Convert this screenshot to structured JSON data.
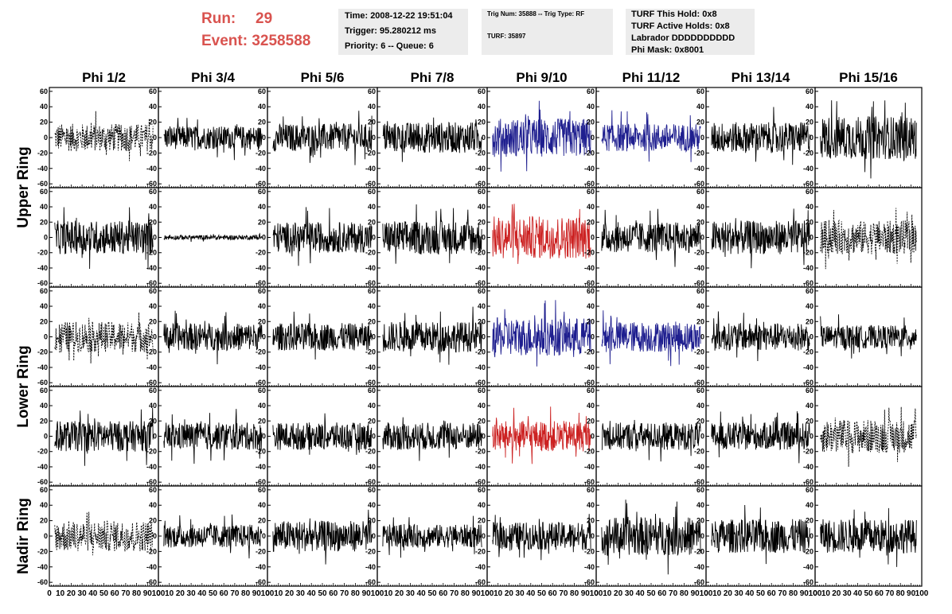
{
  "header": {
    "run_label": "Run:",
    "run_value": "29",
    "event_label": "Event:",
    "event_value": "3258588",
    "info_time": "Time: 2008-12-22 19:51:04",
    "info_trigger": "Trigger: 95.280212 ms",
    "info_priority": "Priority: 6 -- Queue: 6",
    "trig_line": "Trig Num: 35888 -- Trig Type: RF",
    "turf_line": "TURF: 35897",
    "turf_this_hold": "TURF This Hold: 0x8",
    "turf_active_holds": "TURF Active Holds: 0x8",
    "labrador": "Labrador DDDDDDDDDD",
    "phi_mask": "Phi Mask: 0x8001"
  },
  "colors": {
    "normal": "#000000",
    "blue": "#1f1f8f",
    "red": "#cc2222",
    "header_red": "#d9534f",
    "panel_bg": "#ececec"
  },
  "chart_data": {
    "type": "line",
    "columns": [
      "Phi 1/2",
      "Phi 3/4",
      "Phi 5/6",
      "Phi 7/8",
      "Phi 9/10",
      "Phi 11/12",
      "Phi 13/14",
      "Phi 15/16"
    ],
    "ring_labels": [
      "Upper Ring",
      "Lower Ring",
      "Nadir Ring"
    ],
    "y_ticks": [
      "60",
      "40",
      "20",
      "0",
      "-20",
      "-40",
      "-60"
    ],
    "x_ticks": [
      "0",
      "10",
      "20",
      "30",
      "40",
      "50",
      "60",
      "70",
      "80",
      "90",
      "100"
    ],
    "xlim": [
      0,
      100
    ],
    "ylim": [
      -65,
      65
    ],
    "rows": [
      {
        "styles": [
          "dashed",
          "solid",
          "solid",
          "solid",
          "blue",
          "blue",
          "solid",
          "solid"
        ],
        "amplitudes": [
          18,
          15,
          18,
          20,
          25,
          18,
          20,
          28
        ]
      },
      {
        "styles": [
          "solid",
          "solid",
          "solid",
          "solid",
          "red",
          "solid",
          "solid",
          "dashed"
        ],
        "amplitudes": [
          22,
          3,
          20,
          22,
          28,
          20,
          22,
          22
        ]
      },
      {
        "styles": [
          "dashed",
          "solid",
          "solid",
          "solid",
          "blue",
          "blue",
          "solid",
          "solid"
        ],
        "amplitudes": [
          20,
          18,
          18,
          20,
          25,
          20,
          18,
          15
        ]
      },
      {
        "styles": [
          "solid",
          "solid",
          "solid",
          "solid",
          "red",
          "solid",
          "solid",
          "dashed"
        ],
        "amplitudes": [
          20,
          18,
          18,
          18,
          20,
          18,
          18,
          22
        ]
      },
      {
        "styles": [
          "dashed",
          "solid",
          "solid",
          "solid",
          "solid",
          "solid",
          "solid",
          "solid"
        ],
        "amplitudes": [
          20,
          15,
          20,
          15,
          18,
          25,
          22,
          22
        ]
      }
    ]
  }
}
